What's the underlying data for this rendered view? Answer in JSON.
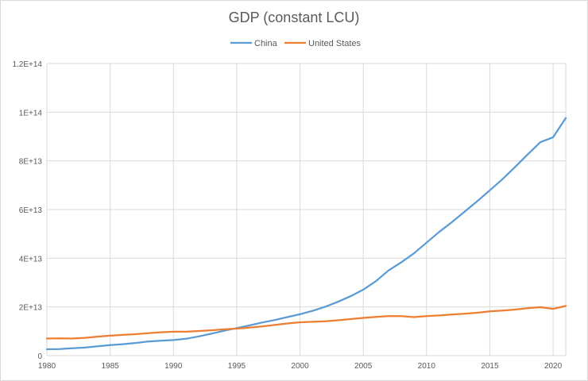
{
  "chart_data": {
    "type": "line",
    "title": "GDP (constant LCU)",
    "xlabel": "",
    "ylabel": "",
    "xlim": [
      1980,
      2021
    ],
    "ylim": [
      0,
      120000000000000
    ],
    "x_ticks": [
      "1980",
      "1985",
      "1990",
      "1995",
      "2000",
      "2005",
      "2010",
      "2015",
      "2020"
    ],
    "y_ticks": [
      "0",
      "2E+13",
      "4E+13",
      "6E+13",
      "8E+13",
      "1E+14",
      "1.2E+14"
    ],
    "grid": "vertical and horizontal",
    "legend_position": "top",
    "x": [
      1980,
      1981,
      1982,
      1983,
      1984,
      1985,
      1986,
      1987,
      1988,
      1989,
      1990,
      1991,
      1992,
      1993,
      1994,
      1995,
      1996,
      1997,
      1998,
      1999,
      2000,
      2001,
      2002,
      2003,
      2004,
      2005,
      2006,
      2007,
      2008,
      2009,
      2010,
      2011,
      2012,
      2013,
      2014,
      2015,
      2016,
      2017,
      2018,
      2019,
      2020,
      2021
    ],
    "series": [
      {
        "name": "China",
        "color": "#5b9bd5",
        "values": [
          2600000000000.0,
          2700000000000.0,
          3000000000000.0,
          3300000000000.0,
          3800000000000.0,
          4300000000000.0,
          4700000000000.0,
          5200000000000.0,
          5800000000000.0,
          6100000000000.0,
          6400000000000.0,
          6900000000000.0,
          7900000000000.0,
          9000000000000.0,
          10200000000000.0,
          11300000000000.0,
          12400000000000.0,
          13600000000000.0,
          14600000000000.0,
          15800000000000.0,
          17000000000000.0,
          18400000000000.0,
          20100000000000.0,
          22100000000000.0,
          24400000000000.0,
          27100000000000.0,
          30600000000000.0,
          35000000000000.0,
          38300000000000.0,
          42000000000000.0,
          46400000000000.0,
          50800000000000.0,
          54800000000000.0,
          59100000000000.0,
          63400000000000.0,
          67900000000000.0,
          72500000000000.0,
          77500000000000.0,
          82700000000000.0,
          87700000000000.0,
          89700000000000.0,
          97600000000000.0
        ]
      },
      {
        "name": "United States",
        "color": "#ed7d31",
        "values": [
          7000000000000.0,
          7100000000000.0,
          7000000000000.0,
          7300000000000.0,
          7800000000000.0,
          8200000000000.0,
          8500000000000.0,
          8800000000000.0,
          9200000000000.0,
          9600000000000.0,
          9800000000000.0,
          9800000000000.0,
          10100000000000.0,
          10400000000000.0,
          10800000000000.0,
          11100000000000.0,
          11500000000000.0,
          12000000000000.0,
          12600000000000.0,
          13200000000000.0,
          13700000000000.0,
          13900000000000.0,
          14100000000000.0,
          14500000000000.0,
          15000000000000.0,
          15500000000000.0,
          15900000000000.0,
          16200000000000.0,
          16200000000000.0,
          15800000000000.0,
          16200000000000.0,
          16500000000000.0,
          16900000000000.0,
          17200000000000.0,
          17600000000000.0,
          18200000000000.0,
          18500000000000.0,
          18900000000000.0,
          19500000000000.0,
          19900000000000.0,
          19200000000000.0,
          20400000000000.0
        ]
      }
    ]
  }
}
